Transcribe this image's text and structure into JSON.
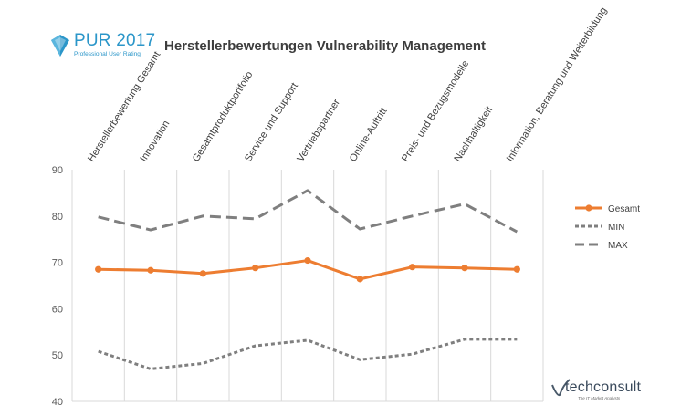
{
  "header": {
    "logo_text": "PUR 2017",
    "logo_subtitle": "Professional User Rating",
    "title": "Herstellerbewertungen Vulnerability Management"
  },
  "footer": {
    "brand": "techconsult",
    "tagline": "The IT Market Analysts"
  },
  "colors": {
    "accent_blue": "#2b96c9",
    "gesamt": "#ed7d31",
    "min_max": "#7f7f7f",
    "grid": "#d9d9d9"
  },
  "chart_data": {
    "type": "line",
    "title": "Herstellerbewertungen Vulnerability Management",
    "xlabel": "",
    "ylabel": "",
    "ylim": [
      40,
      90
    ],
    "yticks": [
      40,
      50,
      60,
      70,
      80,
      90
    ],
    "grid": "vertical",
    "legend_position": "right",
    "categories": [
      "Herstellerbewertung Gesamt",
      "Innovation",
      "Gesamtproduktportfolio",
      "Service und Support",
      "Vertriebspartner",
      "Online-Auftritt",
      "Preis- und Bezugsmodelle",
      "Nachhaltigkeit",
      "Information, Beratung und Weiterbildung"
    ],
    "series": [
      {
        "name": "Gesamt",
        "style": "solid-marker",
        "values": [
          68.5,
          68.3,
          67.6,
          68.8,
          70.4,
          66.4,
          69.0,
          68.8,
          68.5
        ]
      },
      {
        "name": "MIN",
        "style": "dotted",
        "values": [
          50.8,
          47.0,
          48.2,
          52.0,
          53.2,
          49.0,
          50.2,
          53.4,
          53.4
        ]
      },
      {
        "name": "MAX",
        "style": "dashed",
        "values": [
          79.8,
          77.0,
          80.0,
          79.4,
          85.5,
          77.2,
          80.0,
          82.6,
          76.6
        ]
      }
    ]
  }
}
